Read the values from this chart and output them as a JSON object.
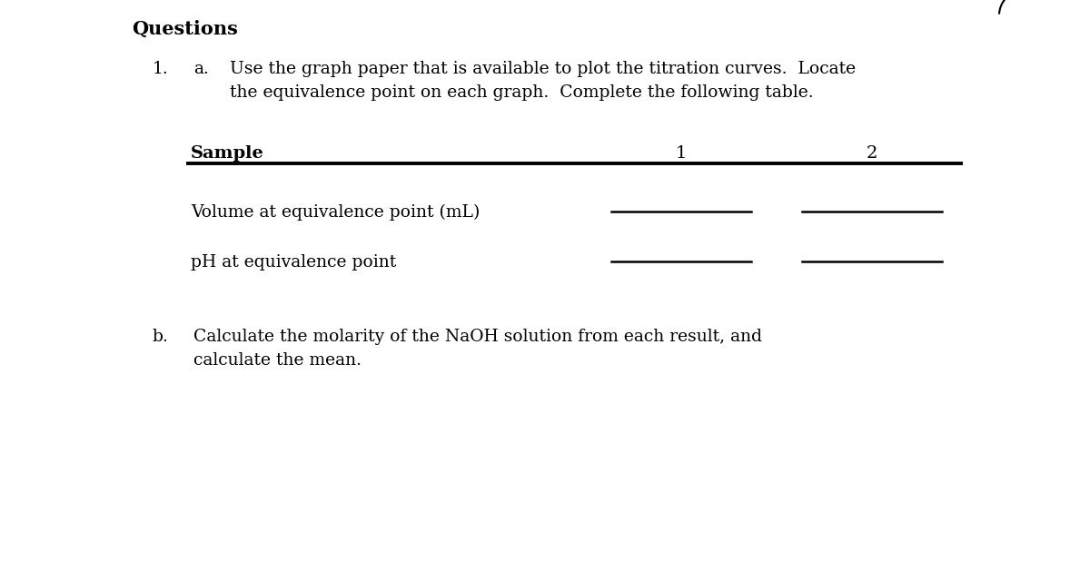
{
  "background_color": "#ffffff",
  "title": "Questions",
  "item1_label": "1.",
  "item1a_label": "a.",
  "item1a_text_line1": "Use the graph paper that is available to plot the titration curves.  Locate",
  "item1a_text_line2": "the equivalence point on each graph.  Complete the following table.",
  "table_header_col0": "Sample",
  "table_header_col1": "1",
  "table_header_col2": "2",
  "table_row1_label": "Volume at equivalence point (mL)",
  "table_row2_label": "pH at equivalence point",
  "item1b_label": "b.",
  "item1b_text_line1": "Calculate the molarity of the NaOH solution from each result, and",
  "item1b_text_line2": "calculate the mean.",
  "font_size_title": 15,
  "font_size_body": 13.5,
  "font_size_table_header": 14,
  "font_size_table_row": 13.5,
  "text_color": "#000000",
  "line_color": "#000000",
  "fig_width": 11.78,
  "fig_height": 6.4
}
